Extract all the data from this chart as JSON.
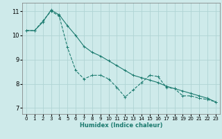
{
  "xlabel": "Humidex (Indice chaleur)",
  "background_color": "#ceeaea",
  "line_color": "#1a7a6e",
  "xlim": [
    -0.5,
    23.5
  ],
  "ylim": [
    6.75,
    11.35
  ],
  "xticks": [
    0,
    1,
    2,
    3,
    4,
    5,
    6,
    7,
    8,
    9,
    10,
    11,
    12,
    13,
    14,
    15,
    16,
    17,
    18,
    19,
    20,
    21,
    22,
    23
  ],
  "yticks": [
    7,
    8,
    9,
    10,
    11
  ],
  "grid_color": "#b0d4d4",
  "series1_x": [
    0,
    1,
    2,
    3,
    4,
    5,
    6,
    7,
    8,
    9,
    10,
    11,
    12,
    13,
    14,
    15,
    16,
    17,
    18,
    19,
    20,
    21,
    22,
    23
  ],
  "series1_y": [
    10.2,
    10.2,
    10.6,
    11.0,
    10.8,
    9.5,
    8.55,
    8.2,
    8.35,
    8.35,
    8.2,
    7.85,
    7.45,
    7.75,
    8.05,
    8.35,
    8.3,
    7.85,
    7.8,
    7.5,
    7.5,
    7.4,
    7.35,
    7.25
  ],
  "series2_x": [
    0,
    1,
    2,
    3,
    4,
    5,
    6,
    7,
    8,
    9,
    10,
    11,
    12,
    13,
    14,
    15,
    16,
    17,
    18,
    19,
    20,
    21,
    22,
    23
  ],
  "series2_y": [
    10.2,
    10.2,
    10.55,
    11.05,
    10.85,
    10.4,
    10.0,
    9.55,
    9.3,
    9.15,
    8.95,
    8.75,
    8.55,
    8.35,
    8.25,
    8.15,
    8.05,
    7.9,
    7.8,
    7.7,
    7.6,
    7.5,
    7.4,
    7.25
  ]
}
